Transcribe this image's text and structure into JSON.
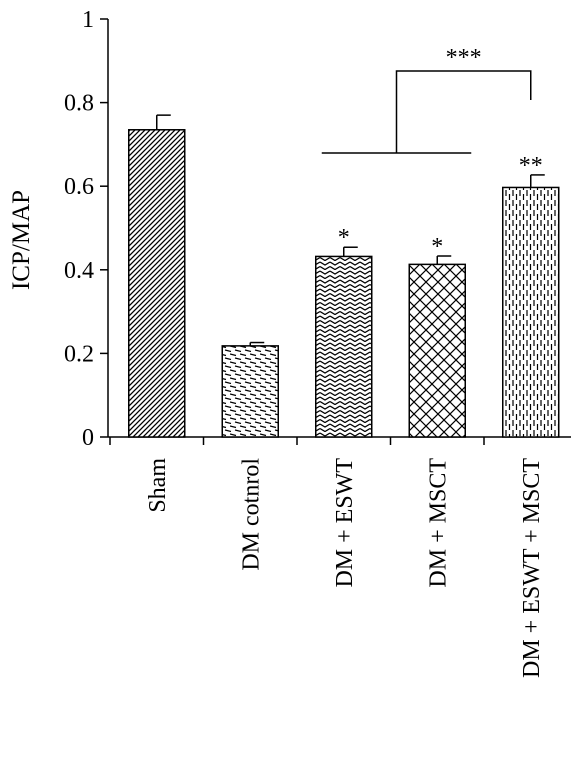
{
  "chart_data": {
    "type": "bar",
    "title": "",
    "xlabel": "",
    "ylabel": "ICP/MAP",
    "ylim": [
      0,
      1
    ],
    "yticks": [
      "0",
      "0.2",
      "0.4",
      "0.6",
      "0.8",
      "1"
    ],
    "categories": [
      "Sham",
      "DM cotnrol",
      "DM + ESWT",
      "DM + MSCT",
      "DM + ESWT + MSCT"
    ],
    "values": [
      0.735,
      0.218,
      0.432,
      0.413,
      0.597
    ],
    "errors": [
      0.035,
      0.008,
      0.022,
      0.02,
      0.03
    ],
    "patterns": [
      "diagonal-dense",
      "horizontal-dashes",
      "zigzag",
      "crosshatch",
      "vertical-dashes"
    ],
    "significance": [
      {
        "category_index": 2,
        "label": "*"
      },
      {
        "category_index": 3,
        "label": "*"
      },
      {
        "category_index": 4,
        "label": "**"
      }
    ],
    "comparison": {
      "label": "***",
      "from_group": [
        2,
        3
      ],
      "to": 4
    },
    "grid": false,
    "legend": "none"
  }
}
